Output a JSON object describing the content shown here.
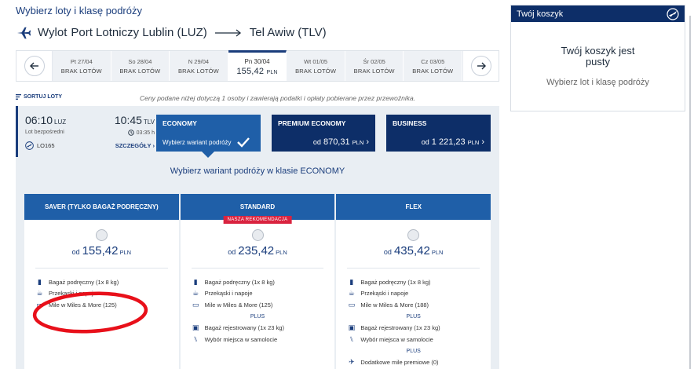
{
  "page": {
    "title": "Wybierz loty i klasę podróży"
  },
  "route": {
    "from_prefix": "Wylot",
    "from": "Port Lotniczy Lublin (LUZ)",
    "to": "Tel Awiw (TLV)"
  },
  "dates": [
    {
      "day": "Pt 27/04",
      "price": "BRAK LOTÓW"
    },
    {
      "day": "So 28/04",
      "price": "BRAK LOTÓW"
    },
    {
      "day": "N 29/04",
      "price": "BRAK LOTÓW"
    },
    {
      "day": "Pn 30/04",
      "price": "155,42",
      "currency": "PLN",
      "active": true
    },
    {
      "day": "Wt 01/05",
      "price": "BRAK LOTÓW"
    },
    {
      "day": "Śr 02/05",
      "price": "BRAK LOTÓW"
    },
    {
      "day": "Cz 03/05",
      "price": "BRAK LOTÓW"
    }
  ],
  "sort_label": "SORTUJ LOTY",
  "price_note": "Ceny podane niżej dotyczą 1 osoby i zawierają podatki i opłaty pobierane przez przewoźnika.",
  "flight": {
    "departure": "06:10",
    "departure_code": "LUZ",
    "arrival": "10:45",
    "arrival_code": "TLV",
    "type": "Lot bezpośredni",
    "duration": "03:35 h",
    "number": "LO165",
    "details": "SZCZEGÓŁY"
  },
  "cabins": {
    "economy": {
      "name": "ECONOMY",
      "sub": "Wybierz wariant podróży"
    },
    "premium": {
      "name": "PREMIUM ECONOMY",
      "od": "od",
      "price": "870,31",
      "currency": "PLN"
    },
    "business": {
      "name": "BUSINESS",
      "od": "od",
      "price": "1 221,23",
      "currency": "PLN"
    }
  },
  "variant_title": "Wybierz wariant podróży w klasie ECONOMY",
  "fares": [
    {
      "name": "SAVER (TYLKO BAGAŻ PODRĘCZNY)",
      "od": "od",
      "price": "155,42",
      "currency": "PLN",
      "features": [
        "Bagaż podręczny (1x 8 kg)",
        "Przekąski i napoje",
        "Mile w Miles & More (125)"
      ]
    },
    {
      "name": "STANDARD",
      "badge": "NASZA REKOMENDACJA",
      "od": "od",
      "price": "235,42",
      "currency": "PLN",
      "features": [
        "Bagaż podręczny (1x 8 kg)",
        "Przekąski i napoje",
        "Mile w Miles & More (125)"
      ],
      "plus": "PLUS",
      "extras": [
        "Bagaż rejestrowany (1x 23 kg)",
        "Wybór miejsca w samolocie"
      ]
    },
    {
      "name": "FLEX",
      "od": "od",
      "price": "435,42",
      "currency": "PLN",
      "features": [
        "Bagaż podręczny (1x 8 kg)",
        "Przekąski i napoje",
        "Mile w Miles & More (188)"
      ],
      "plus": "PLUS",
      "extras": [
        "Bagaż rejestrowany (1x 23 kg)",
        "Wybór miejsca w samolocie"
      ],
      "plus2": "PLUS",
      "extras2": [
        "Dodatkowe mile premiowe (0)"
      ]
    }
  ],
  "cart": {
    "title": "Twój koszyk",
    "empty_line1": "Twój koszyk jest",
    "empty_line2": "pusty",
    "hint": "Wybierz lot i klasę podróży"
  },
  "colors": {
    "brand": "#0d2e68",
    "accent": "#1f5fa8",
    "badge": "#d9233f",
    "annotation": "#e8101a"
  }
}
